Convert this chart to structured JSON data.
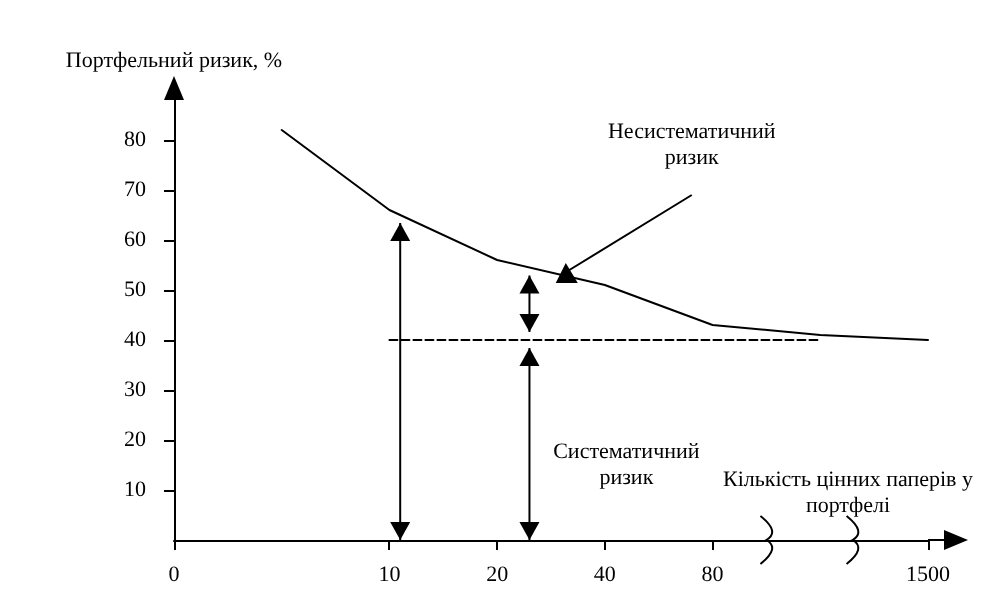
{
  "chart_data": {
    "type": "line",
    "xlabel": "Кількість цінних паперів у портфелі",
    "ylabel": "Портфельний ризик, %",
    "annotations": [
      "Несистематичний ризик",
      "Систематичний ризик"
    ],
    "categories": [
      "0",
      null,
      "10",
      "20",
      "40",
      "80",
      null,
      "1500"
    ],
    "ylim": [
      0,
      88
    ],
    "yticks": [
      10,
      20,
      30,
      40,
      50,
      60,
      70,
      80
    ],
    "grid": false,
    "marker": "none",
    "series": [
      {
        "color": "#000000",
        "line_style": "solid",
        "values": [
          null,
          82,
          66,
          56,
          51,
          43,
          41,
          40
        ]
      },
      {
        "color": "#000000",
        "line_style": "dashed",
        "values": [
          null,
          null,
          40,
          40,
          40,
          40,
          40,
          null
        ]
      }
    ]
  }
}
